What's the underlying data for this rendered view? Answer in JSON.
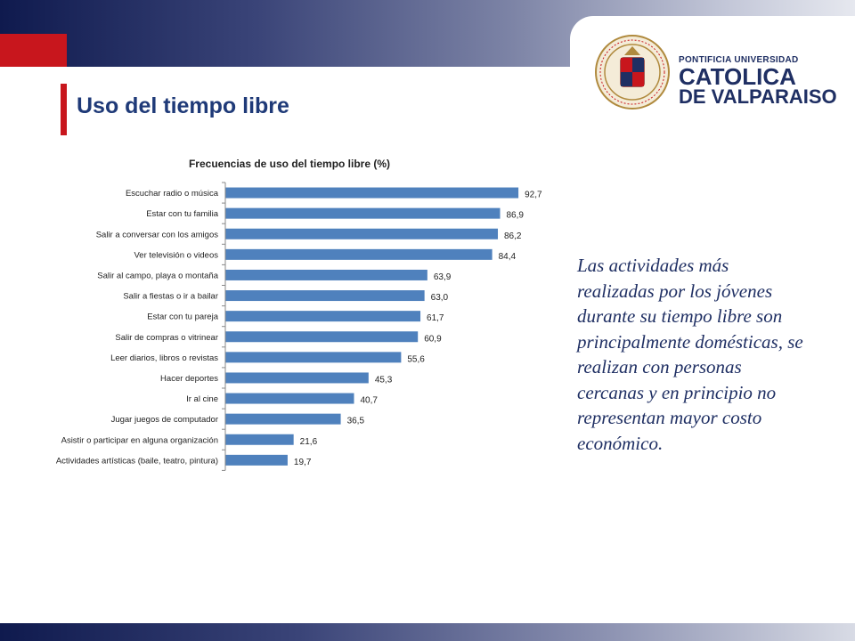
{
  "header": {
    "title": "Uso del tiempo libre",
    "brand": {
      "line1": "PONTIFICIA UNIVERSIDAD",
      "line2": "CATOLICA",
      "line3": "DE VALPARAISO"
    }
  },
  "colors": {
    "bar": "#4f81bd",
    "accent_red": "#c8161d",
    "title_blue": "#1f3a78",
    "text_navy": "#1f2f63"
  },
  "description": "Las actividades más realizadas por los jóvenes durante su tiempo libre son principalmente domésticas, se realizan con personas cercanas y en principio no representan mayor costo económico.",
  "chart_data": {
    "type": "bar",
    "orientation": "horizontal",
    "title": "Frecuencias de uso del tiempo libre (%)",
    "categories": [
      "Escuchar radio o música",
      "Estar con tu familia",
      "Salir a conversar con los amigos",
      "Ver televisión o videos",
      "Salir al campo, playa o montaña",
      "Salir a fiestas o ir a bailar",
      "Estar con tu pareja",
      "Salir de compras o vitrinear",
      "Leer diarios, libros o revistas",
      "Hacer deportes",
      "Ir al cine",
      "Jugar juegos de computador",
      "Asistir o participar en alguna organización",
      "Actividades artísticas (baile, teatro, pintura)"
    ],
    "values": [
      92.7,
      86.9,
      86.2,
      84.4,
      63.9,
      63.0,
      61.7,
      60.9,
      55.6,
      45.3,
      40.7,
      36.5,
      21.6,
      19.7
    ],
    "value_labels": [
      "92,7",
      "86,9",
      "86,2",
      "84,4",
      "63,9",
      "63,0",
      "61,7",
      "60,9",
      "55,6",
      "45,3",
      "40,7",
      "36,5",
      "21,6",
      "19,7"
    ],
    "xlim": [
      0,
      100
    ],
    "grid": false,
    "legend": "none"
  }
}
